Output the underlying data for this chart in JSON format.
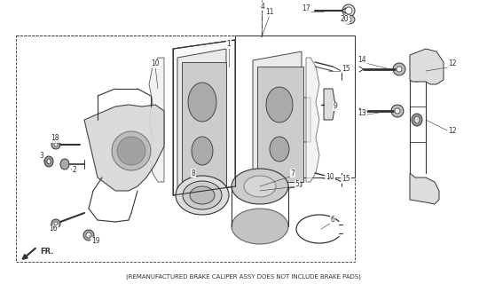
{
  "bg_color": "#ffffff",
  "line_color": "#333333",
  "subtitle": "(REMANUFACTURED BRAKE CALIPER ASSY DOES NOT INCLUDE BRAKE PADS)",
  "figsize": [
    5.49,
    3.2
  ],
  "dpi": 100
}
